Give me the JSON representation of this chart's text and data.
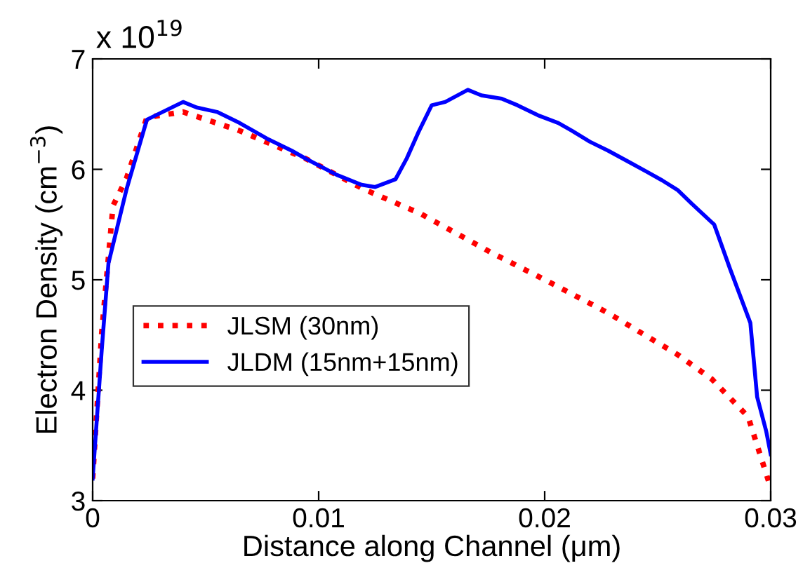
{
  "chart_data": {
    "type": "line",
    "xlabel": "Distance along Channel (μm)",
    "ylabel": "Electron Density (cm$^{−3}$)",
    "annotations": [
      "x 10$^{19}$"
    ],
    "xlim": [
      0,
      0.03
    ],
    "ylim": [
      3,
      7
    ],
    "xticks": [
      0,
      0.01,
      0.02,
      0.03
    ],
    "yticks": [
      3,
      4,
      5,
      6,
      7
    ],
    "grid": false,
    "legend": "center left",
    "series": [
      {
        "name": "JLSM (30nm)",
        "color": "#ff0000",
        "line_style": "dotted",
        "x": [
          0,
          0.0004,
          0.0009,
          0.0015,
          0.0024,
          0.004,
          0.0065,
          0.0094,
          0.012,
          0.0137,
          0.0145,
          0.0176,
          0.0201,
          0.0228,
          0.0259,
          0.0274,
          0.029,
          0.0299
        ],
        "values": [
          3.2,
          4.52,
          5.67,
          5.92,
          6.47,
          6.52,
          6.35,
          6.1,
          5.82,
          5.67,
          5.6,
          5.25,
          4.99,
          4.7,
          4.32,
          4.1,
          3.76,
          3.18
        ]
      },
      {
        "name": "JLDM (15nm+15nm)",
        "color": "#0000ff",
        "line_style": "solid",
        "x": [
          0,
          0.0004,
          0.0007,
          0.0015,
          0.0024,
          0.004,
          0.0046,
          0.0055,
          0.0065,
          0.0077,
          0.0088,
          0.0094,
          0.0108,
          0.0119,
          0.0125,
          0.0134,
          0.0139,
          0.0144,
          0.015,
          0.0156,
          0.0166,
          0.0172,
          0.0181,
          0.0188,
          0.0197,
          0.0206,
          0.0212,
          0.022,
          0.0228,
          0.0237,
          0.0245,
          0.0252,
          0.0259,
          0.0265,
          0.0275,
          0.0282,
          0.0291,
          0.0294,
          0.0298,
          0.03
        ],
        "values": [
          3.2,
          4.36,
          5.15,
          5.82,
          6.45,
          6.61,
          6.56,
          6.52,
          6.42,
          6.28,
          6.17,
          6.1,
          5.95,
          5.86,
          5.84,
          5.91,
          6.1,
          6.33,
          6.58,
          6.61,
          6.72,
          6.67,
          6.64,
          6.58,
          6.49,
          6.42,
          6.35,
          6.25,
          6.17,
          6.07,
          5.98,
          5.9,
          5.81,
          5.69,
          5.5,
          5.1,
          4.61,
          3.94,
          3.63,
          3.42
        ]
      }
    ]
  }
}
